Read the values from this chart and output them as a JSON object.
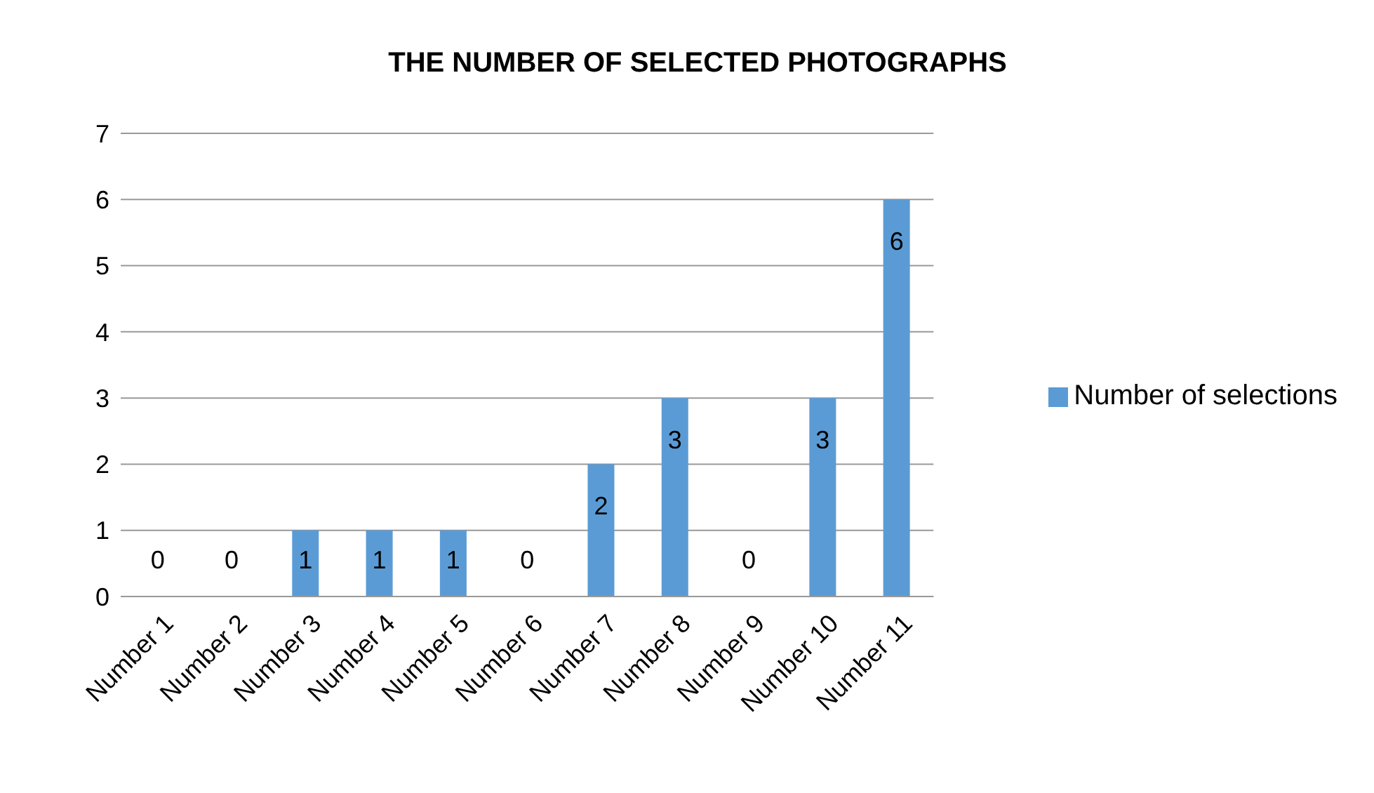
{
  "chart_data": {
    "type": "bar",
    "title": "THE NUMBER OF SELECTED PHOTOGRAPHS",
    "categories": [
      "Number 1",
      "Number 2",
      "Number 3",
      "Number 4",
      "Number 5",
      "Number 6",
      "Number 7",
      "Number 8",
      "Number 9",
      "Number 10",
      "Number 11"
    ],
    "series": [
      {
        "name": "Number of selections",
        "color": "#5b9bd5",
        "values": [
          0,
          0,
          1,
          1,
          1,
          0,
          2,
          3,
          0,
          3,
          6
        ]
      }
    ],
    "ylim": [
      0,
      7
    ],
    "yticks": [
      0,
      1,
      2,
      3,
      4,
      5,
      6,
      7
    ],
    "grid": "y",
    "legend": "right",
    "data_labels": true
  }
}
